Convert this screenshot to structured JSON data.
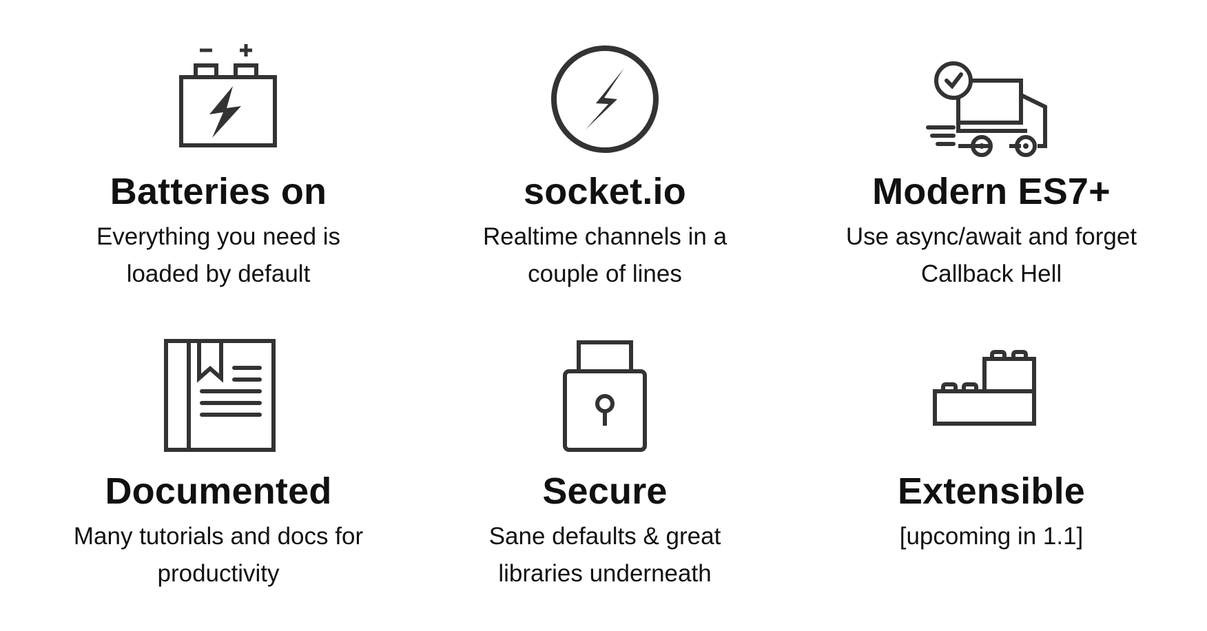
{
  "features": [
    {
      "icon": "battery-icon",
      "title": "Batteries on",
      "line1": "Everything you need is",
      "line2": "loaded by default"
    },
    {
      "icon": "socket-io-logo-icon",
      "title": "socket.io",
      "line1": "Realtime channels in a",
      "line2": "couple of lines"
    },
    {
      "icon": "delivery-truck-icon",
      "title": "Modern ES7+",
      "line1": "Use async/await and forget",
      "line2": "Callback Hell"
    },
    {
      "icon": "book-icon",
      "title": "Documented",
      "line1": "Many tutorials and docs for",
      "line2": "productivity"
    },
    {
      "icon": "padlock-icon",
      "title": "Secure",
      "line1": "Sane defaults & great",
      "line2": "libraries underneath"
    },
    {
      "icon": "lego-bricks-icon",
      "title": "Extensible",
      "line1": "[upcoming in 1.1]",
      "line2": ""
    }
  ],
  "colors": {
    "icon_stroke": "#333333",
    "text": "#111111",
    "background": "#ffffff"
  }
}
